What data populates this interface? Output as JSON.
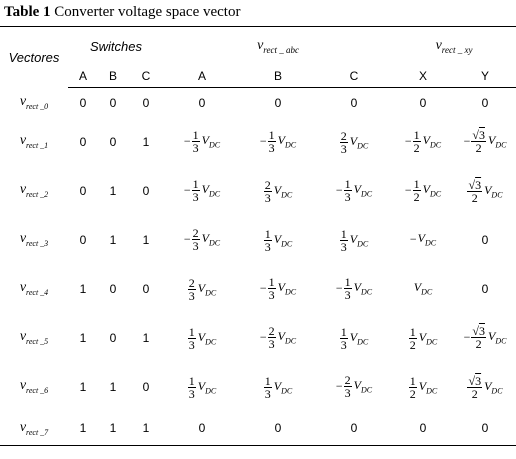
{
  "caption": {
    "label": "Table 1",
    "text": "Converter voltage space vector"
  },
  "header": {
    "vectors": "Vectores",
    "switches": "Switches",
    "v_abc": {
      "symbol": "v",
      "subscript": "rect _ abc"
    },
    "v_xy": {
      "symbol": "v",
      "subscript": "rect _ xy"
    },
    "sub_cols": [
      "A",
      "B",
      "C",
      "A",
      "B",
      "C",
      "X",
      "Y"
    ]
  },
  "rows": [
    {
      "name": {
        "symbol": "v",
        "subscript": "rect _0"
      },
      "bits": [
        "0",
        "0",
        "0"
      ],
      "vals": [
        "0",
        "0",
        "0",
        "0",
        "0"
      ]
    },
    {
      "name": {
        "symbol": "v",
        "subscript": "rect _1"
      },
      "bits": [
        "0",
        "0",
        "1"
      ],
      "vals": [
        "-1/3 V_DC",
        "-1/3 V_DC",
        "2/3 V_DC",
        "-1/2 V_DC",
        "-√3/2 V_DC"
      ]
    },
    {
      "name": {
        "symbol": "v",
        "subscript": "rect _2"
      },
      "bits": [
        "0",
        "1",
        "0"
      ],
      "vals": [
        "-1/3 V_DC",
        "2/3 V_DC",
        "-1/3 V_DC",
        "-1/2 V_DC",
        "√3/2 V_DC"
      ]
    },
    {
      "name": {
        "symbol": "v",
        "subscript": "rect _3"
      },
      "bits": [
        "0",
        "1",
        "1"
      ],
      "vals": [
        "-2/3 V_DC",
        "1/3 V_DC",
        "1/3 V_DC",
        "-V_DC",
        "0"
      ]
    },
    {
      "name": {
        "symbol": "v",
        "subscript": "rect _4"
      },
      "bits": [
        "1",
        "0",
        "0"
      ],
      "vals": [
        "2/3 V_DC",
        "-1/3 V_DC",
        "-1/3 V_DC",
        "V_DC",
        "0"
      ]
    },
    {
      "name": {
        "symbol": "v",
        "subscript": "rect _5"
      },
      "bits": [
        "1",
        "0",
        "1"
      ],
      "vals": [
        "1/3 V_DC",
        "-2/3 V_DC",
        "1/3 V_DC",
        "1/2 V_DC",
        "-√3/2 V_DC"
      ]
    },
    {
      "name": {
        "symbol": "v",
        "subscript": "rect _6"
      },
      "bits": [
        "1",
        "1",
        "0"
      ],
      "vals": [
        "1/3 V_DC",
        "1/3 V_DC",
        "-2/3 V_DC",
        "1/2 V_DC",
        "√3/2 V_DC"
      ]
    },
    {
      "name": {
        "symbol": "v",
        "subscript": "rect _7"
      },
      "bits": [
        "1",
        "1",
        "1"
      ],
      "vals": [
        "0",
        "0",
        "0",
        "0",
        "0"
      ]
    }
  ]
}
